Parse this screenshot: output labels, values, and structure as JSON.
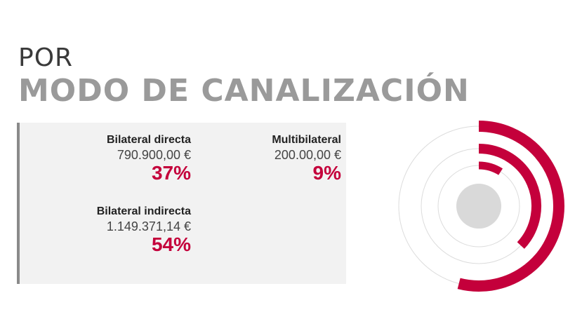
{
  "header": {
    "line1": "POR",
    "line2": "MODO DE CANALIZACIÓN"
  },
  "items": [
    {
      "label": "Bilateral directa",
      "amount": "790.900,00 €",
      "percent": "37%"
    },
    {
      "label": "Multibilateral",
      "amount": "200.00,00 €",
      "percent": "9%"
    },
    {
      "label": "Bilateral indirecta",
      "amount": "1.149.371,14 €",
      "percent": "54%"
    }
  ],
  "colors": {
    "accent": "#c4003b",
    "track": "#dcdcdc",
    "center": "#d9d9d9"
  },
  "chart_data": {
    "type": "radial-bar",
    "categories": [
      "Bilateral indirecta",
      "Bilateral directa",
      "Multibilateral"
    ],
    "values": [
      54,
      37,
      9
    ]
  }
}
